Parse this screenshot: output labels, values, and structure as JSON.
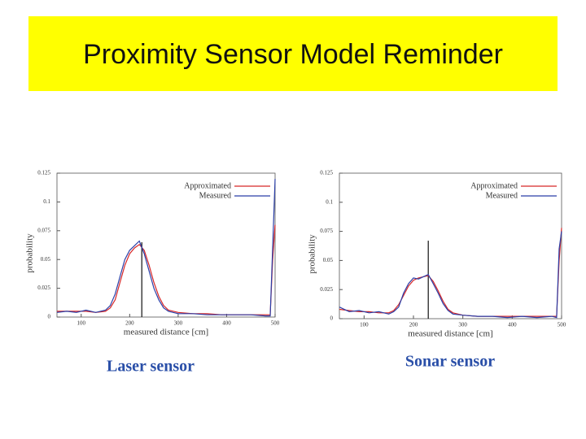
{
  "title": "Proximity Sensor Model Reminder",
  "chart_data": [
    {
      "type": "line",
      "caption": "Laser sensor",
      "xlabel": "measured distance [cm]",
      "ylabel": "probability",
      "x": [
        50,
        70,
        90,
        110,
        130,
        150,
        160,
        170,
        180,
        190,
        200,
        210,
        220,
        230,
        240,
        250,
        260,
        270,
        280,
        300,
        330,
        360,
        390,
        420,
        450,
        480,
        490,
        495,
        500
      ],
      "series": [
        {
          "name": "Approximated",
          "color": "#d62728",
          "values": [
            0.005,
            0.005,
            0.005,
            0.005,
            0.004,
            0.005,
            0.008,
            0.015,
            0.03,
            0.045,
            0.055,
            0.06,
            0.063,
            0.058,
            0.045,
            0.03,
            0.018,
            0.01,
            0.006,
            0.004,
            0.003,
            0.003,
            0.002,
            0.002,
            0.002,
            0.002,
            0.002,
            0.05,
            0.08
          ]
        },
        {
          "name": "Measured",
          "color": "#2b3fa8",
          "values": [
            0.004,
            0.005,
            0.004,
            0.006,
            0.004,
            0.006,
            0.01,
            0.02,
            0.035,
            0.05,
            0.058,
            0.062,
            0.066,
            0.055,
            0.04,
            0.025,
            0.015,
            0.008,
            0.005,
            0.003,
            0.003,
            0.002,
            0.002,
            0.002,
            0.002,
            0.001,
            0.001,
            0.06,
            0.12
          ]
        }
      ],
      "reference": {
        "x": 225,
        "y": 0.065
      },
      "xlim": [
        50,
        500
      ],
      "ylim": [
        0,
        0.125
      ],
      "xticks": [
        100,
        200,
        300,
        400,
        500
      ],
      "yticks": [
        0,
        0.025,
        0.05,
        0.075,
        0.1,
        0.125
      ],
      "legend": "upper right"
    },
    {
      "type": "line",
      "caption": "Sonar sensor",
      "xlabel": "measured distance [cm]",
      "ylabel": "probability",
      "x": [
        50,
        70,
        90,
        110,
        130,
        150,
        160,
        170,
        180,
        190,
        200,
        210,
        220,
        230,
        240,
        250,
        260,
        270,
        280,
        300,
        330,
        360,
        390,
        420,
        450,
        480,
        490,
        495,
        500
      ],
      "series": [
        {
          "name": "Approximated",
          "color": "#d62728",
          "values": [
            0.008,
            0.007,
            0.006,
            0.006,
            0.005,
            0.005,
            0.007,
            0.012,
            0.02,
            0.028,
            0.033,
            0.035,
            0.036,
            0.037,
            0.032,
            0.024,
            0.015,
            0.008,
            0.005,
            0.003,
            0.002,
            0.002,
            0.002,
            0.002,
            0.002,
            0.002,
            0.002,
            0.05,
            0.078
          ]
        },
        {
          "name": "Measured",
          "color": "#2b3fa8",
          "values": [
            0.01,
            0.006,
            0.007,
            0.005,
            0.006,
            0.004,
            0.006,
            0.01,
            0.022,
            0.03,
            0.035,
            0.034,
            0.036,
            0.038,
            0.03,
            0.022,
            0.013,
            0.007,
            0.004,
            0.003,
            0.002,
            0.002,
            0.001,
            0.002,
            0.001,
            0.002,
            0.001,
            0.06,
            0.075
          ]
        }
      ],
      "reference": {
        "x": 230,
        "y": 0.067
      },
      "xlim": [
        50,
        500
      ],
      "ylim": [
        0,
        0.125
      ],
      "xticks": [
        100,
        200,
        300,
        400,
        500
      ],
      "yticks": [
        0,
        0.025,
        0.05,
        0.075,
        0.1,
        0.125
      ],
      "legend": "upper right"
    }
  ]
}
